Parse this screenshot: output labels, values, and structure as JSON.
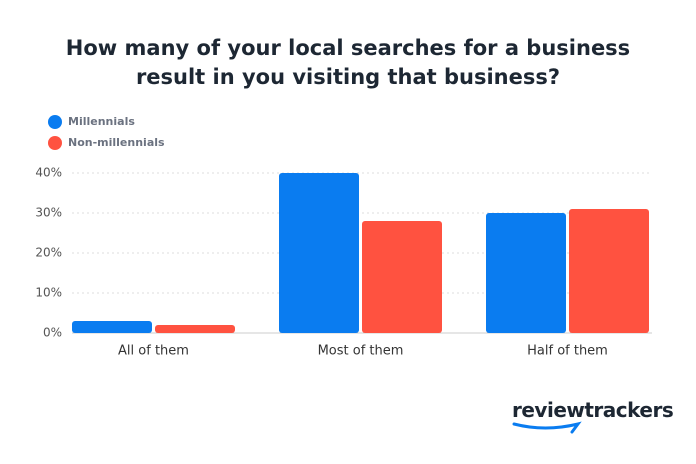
{
  "chart_data": {
    "type": "bar",
    "title": "How many of your local searches for a business result in you visiting that business?",
    "categories": [
      "All of them",
      "Most of them",
      "Half of them"
    ],
    "series": [
      {
        "name": "Millennials",
        "color": "#0a7cf0",
        "values": [
          3,
          40,
          30
        ]
      },
      {
        "name": "Non-millennials",
        "color": "#ff5240",
        "values": [
          2,
          28,
          31
        ]
      }
    ],
    "ylim": [
      0,
      40
    ],
    "yticks": [
      {
        "value": 0,
        "label": "0%"
      },
      {
        "value": 10,
        "label": "10%"
      },
      {
        "value": 20,
        "label": "20%"
      },
      {
        "value": 30,
        "label": "30%"
      },
      {
        "value": 40,
        "label": "40%"
      }
    ],
    "grid": true,
    "legend": "top-left"
  },
  "logo": "reviewtrackers"
}
